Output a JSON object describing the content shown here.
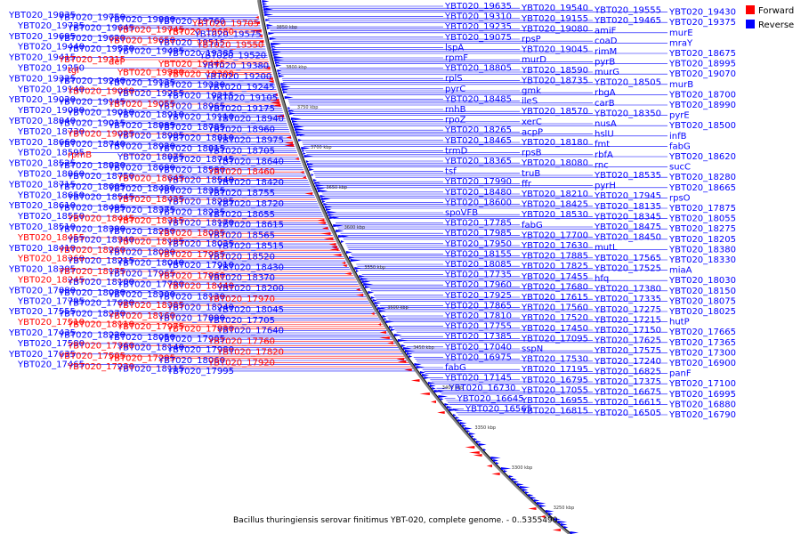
{
  "caption": "Bacillus thuringiensis serovar finitimus YBT-020, complete genome. - 0..5355490",
  "legend": [
    {
      "label": "Forward",
      "color": "#ff0000"
    },
    {
      "label": "Reverse",
      "color": "#0000ff"
    }
  ],
  "colors": {
    "forward": "#ff0000",
    "reverse": "#0000ff",
    "backbone": "#808080"
  },
  "bp_ticks": [
    "3850 kbp",
    "3800 kbp",
    "3750 kbp",
    "3700 kbp",
    "3650 kbp",
    "3600 kbp",
    "3550 kbp",
    "3500 kbp",
    "3450 kbp",
    "3400 kbp",
    "3350 kbp",
    "3300 kbp",
    "3250 kbp"
  ],
  "left_labels": [
    {
      "t": "YBT020_19835",
      "c": "b"
    },
    {
      "t": "YBT020_19750",
      "c": "b"
    },
    {
      "t": "YBT020_19800",
      "c": "b"
    },
    {
      "t": "YBT020_19760",
      "c": "b"
    },
    {
      "t": "YBT020_19705",
      "c": "r"
    },
    {
      "t": "YBT020_19725",
      "c": "b"
    },
    {
      "t": "YBT020_19645",
      "c": "b"
    },
    {
      "t": "YBT020_19745",
      "c": "r"
    },
    {
      "t": "YBT020_19680",
      "c": "r"
    },
    {
      "t": "YBT020_19575",
      "c": "b"
    },
    {
      "t": "YBT020_19695",
      "c": "b"
    },
    {
      "t": "YBT020_19620",
      "c": "b"
    },
    {
      "t": "YBT020_19650",
      "c": "r"
    },
    {
      "t": "YBT020_19515",
      "c": "b"
    },
    {
      "t": "YBT020_19550",
      "c": "r"
    },
    {
      "t": "YBT020_19440",
      "c": "b"
    },
    {
      "t": "YBT020_19570",
      "c": "b"
    },
    {
      "t": "YBT020_19495",
      "c": "b"
    },
    {
      "t": "YBT020_19385",
      "c": "b"
    },
    {
      "t": "YBT020_19520",
      "c": "b"
    },
    {
      "t": "YBT020_19415",
      "c": "b"
    },
    {
      "t": "YBT020_19315",
      "c": "r"
    },
    {
      "t": "def",
      "c": "r"
    },
    {
      "t": "YBT020_19445",
      "c": "r"
    },
    {
      "t": "YBT020_19380",
      "c": "b"
    },
    {
      "t": "YBT020_19250",
      "c": "b"
    },
    {
      "t": "tgl",
      "c": "r"
    },
    {
      "t": "YBT020_19390",
      "c": "r"
    },
    {
      "t": "YBT020_19300",
      "c": "r"
    },
    {
      "t": "YBT020_19200",
      "c": "b"
    },
    {
      "t": "YBT020_19325",
      "c": "b"
    },
    {
      "t": "YBT020_19240",
      "c": "b"
    },
    {
      "t": "YBT020_19135",
      "c": "b"
    },
    {
      "t": "YBT020_19320",
      "c": "b"
    },
    {
      "t": "YBT020_19245",
      "c": "b"
    },
    {
      "t": "YBT020_19140",
      "c": "b"
    },
    {
      "t": "YBT020_19060",
      "c": "r"
    },
    {
      "t": "YBT020_19255",
      "c": "b"
    },
    {
      "t": "YBT020_19215",
      "c": "b"
    },
    {
      "t": "YBT020_19105",
      "c": "b"
    },
    {
      "t": "YBT020_19020",
      "c": "b"
    },
    {
      "t": "YBT020_19145",
      "c": "b"
    },
    {
      "t": "YBT020_19055",
      "c": "r"
    },
    {
      "t": "YBT020_18965",
      "c": "b"
    },
    {
      "t": "YBT020_19175",
      "c": "b"
    },
    {
      "t": "YBT020_19090",
      "c": "b"
    },
    {
      "t": "YBT020_19010",
      "c": "b"
    },
    {
      "t": "YBT020_18910",
      "c": "b"
    },
    {
      "t": "YBT020_19110",
      "c": "b"
    },
    {
      "t": "YBT020_18940",
      "c": "b"
    },
    {
      "t": "YBT020_18840",
      "c": "b"
    },
    {
      "t": "YBT020_19015",
      "c": "b"
    },
    {
      "t": "YBT020_18885",
      "c": "b"
    },
    {
      "t": "YBT020_18785",
      "c": "b"
    },
    {
      "t": "YBT020_18960",
      "c": "b"
    },
    {
      "t": "YBT020_18730",
      "c": "b"
    },
    {
      "t": "YBT020_19025",
      "c": "r"
    },
    {
      "t": "YBT020_18905",
      "c": "b"
    },
    {
      "t": "YBT020_18810",
      "c": "b"
    },
    {
      "t": "YBT020_18975",
      "c": "b"
    },
    {
      "t": "YBT020_18660",
      "c": "b"
    },
    {
      "t": "YBT020_18740",
      "c": "b"
    },
    {
      "t": "YBT020_18920",
      "c": "b"
    },
    {
      "t": "YBT020_18815",
      "c": "b"
    },
    {
      "t": "YBT020_18705",
      "c": "b"
    },
    {
      "t": "YBT020_18595",
      "c": "b"
    },
    {
      "t": "rpmB",
      "c": "r"
    },
    {
      "t": "YBT020_18875",
      "c": "b"
    },
    {
      "t": "YBT020_18745",
      "c": "b"
    },
    {
      "t": "YBT020_18640",
      "c": "b"
    },
    {
      "t": "YBT020_18525",
      "c": "b"
    },
    {
      "t": "YBT020_18820",
      "c": "b"
    },
    {
      "t": "YBT020_18690",
      "c": "b"
    },
    {
      "t": "YBT020_18580",
      "c": "b"
    },
    {
      "t": "YBT020_18460",
      "c": "r"
    },
    {
      "t": "YBT020_18860",
      "c": "b"
    },
    {
      "t": "YBT020_18750",
      "c": "b"
    },
    {
      "t": "YBT020_18645",
      "c": "r"
    },
    {
      "t": "YBT020_18540",
      "c": "b"
    },
    {
      "t": "YBT020_18420",
      "c": "b"
    },
    {
      "t": "YBT020_18715",
      "c": "b"
    },
    {
      "t": "YBT020_18605",
      "c": "b"
    },
    {
      "t": "YBT020_18490",
      "c": "b"
    },
    {
      "t": "YBT020_18355",
      "c": "b"
    },
    {
      "t": "YBT020_18755",
      "c": "b"
    },
    {
      "t": "YBT020_18650",
      "c": "b"
    },
    {
      "t": "YBT020_18545",
      "c": "b"
    },
    {
      "t": "YBT020_18435",
      "c": "r"
    },
    {
      "t": "YBT020_18295",
      "c": "b"
    },
    {
      "t": "YBT020_18720",
      "c": "b"
    },
    {
      "t": "YBT020_18610",
      "c": "b"
    },
    {
      "t": "YBT020_18495",
      "c": "b"
    },
    {
      "t": "YBT020_18375",
      "c": "b"
    },
    {
      "t": "YBT020_18225",
      "c": "b"
    },
    {
      "t": "YBT020_18655",
      "c": "b"
    },
    {
      "t": "YBT020_18550",
      "c": "b"
    },
    {
      "t": "YBT020_18445",
      "c": "r"
    },
    {
      "t": "YBT020_18315",
      "c": "r"
    },
    {
      "t": "YBT020_18170",
      "c": "b"
    },
    {
      "t": "YBT020_18615",
      "c": "b"
    },
    {
      "t": "YBT020_18510",
      "c": "b"
    },
    {
      "t": "YBT020_18390",
      "c": "b"
    },
    {
      "t": "YBT020_18250",
      "c": "b"
    },
    {
      "t": "YBT020_18095",
      "c": "r"
    },
    {
      "t": "YBT020_18565",
      "c": "b"
    },
    {
      "t": "YBT020_18455",
      "c": "r"
    },
    {
      "t": "YBT020_18340",
      "c": "b"
    },
    {
      "t": "YBT020_18195",
      "c": "r"
    },
    {
      "t": "YBT020_18035",
      "c": "b"
    },
    {
      "t": "YBT020_18515",
      "c": "b"
    },
    {
      "t": "YBT020_18410",
      "c": "b"
    },
    {
      "t": "YBT020_18260",
      "c": "r"
    },
    {
      "t": "YBT020_18090",
      "c": "b"
    },
    {
      "t": "YBT020_17955",
      "c": "r"
    },
    {
      "t": "YBT020_18520",
      "c": "b"
    },
    {
      "t": "YBT020_18360",
      "c": "r"
    },
    {
      "t": "YBT020_18215",
      "c": "b"
    },
    {
      "t": "YBT020_18040",
      "c": "b"
    },
    {
      "t": "YBT020_17910",
      "c": "b"
    },
    {
      "t": "YBT020_18430",
      "c": "b"
    },
    {
      "t": "YBT020_18305",
      "c": "b"
    },
    {
      "t": "YBT020_18175",
      "c": "r"
    },
    {
      "t": "YBT020_17965",
      "c": "b"
    },
    {
      "t": "YBT020_17860",
      "c": "r"
    },
    {
      "t": "YBT020_18370",
      "c": "b"
    },
    {
      "t": "YBT020_18245",
      "c": "r"
    },
    {
      "t": "YBT020_18100",
      "c": "b"
    },
    {
      "t": "YBT020_17790",
      "c": "b"
    },
    {
      "t": "YBT020_18440",
      "c": "r"
    },
    {
      "t": "YBT020_18200",
      "c": "b"
    },
    {
      "t": "YBT020_17880",
      "c": "b"
    },
    {
      "t": "YBT020_18020",
      "c": "b"
    },
    {
      "t": "YBT020_18300",
      "c": "b"
    },
    {
      "t": "YBT020_18130",
      "c": "b"
    },
    {
      "t": "YBT020_17970",
      "c": "r"
    },
    {
      "t": "YBT020_17795",
      "c": "b"
    },
    {
      "t": "YBT020_17620",
      "c": "b"
    },
    {
      "t": "YBT020_18385",
      "c": "r"
    },
    {
      "t": "YBT020_18240",
      "c": "b"
    },
    {
      "t": "YBT020_18045",
      "c": "b"
    },
    {
      "t": "YBT020_17555",
      "c": "b"
    },
    {
      "t": "YBT020_18270",
      "c": "b"
    },
    {
      "t": "YBT020_18160",
      "c": "r"
    },
    {
      "t": "YBT020_17890",
      "c": "b"
    },
    {
      "t": "YBT020_17705",
      "c": "b"
    },
    {
      "t": "YBT020_17510",
      "c": "r"
    },
    {
      "t": "YBT020_18110",
      "c": "r"
    },
    {
      "t": "YBT020_17975",
      "c": "r"
    },
    {
      "t": "YBT020_17830",
      "c": "r"
    },
    {
      "t": "YBT020_17640",
      "c": "b"
    },
    {
      "t": "YBT020_17435",
      "c": "b"
    },
    {
      "t": "YBT020_18220",
      "c": "b"
    },
    {
      "t": "YBT020_18050",
      "c": "b"
    },
    {
      "t": "YBT020_17905",
      "c": "b"
    },
    {
      "t": "YBT020_17760",
      "c": "r"
    },
    {
      "t": "YBT020_17580",
      "c": "b"
    },
    {
      "t": "YBT020_17360",
      "c": "r"
    },
    {
      "t": "YBT020_18140",
      "c": "b"
    },
    {
      "t": "YBT020_17980",
      "c": "b"
    },
    {
      "t": "YBT020_17820",
      "c": "r"
    },
    {
      "t": "YBT020_17635",
      "c": "b"
    },
    {
      "t": "YBT020_17505",
      "c": "r"
    },
    {
      "t": "YBT020_17295",
      "c": "r"
    },
    {
      "t": "YBT020_18060",
      "c": "b"
    },
    {
      "t": "YBT020_17920",
      "c": "r"
    },
    {
      "t": "YBT020_17465",
      "c": "b"
    },
    {
      "t": "YBT020_17230",
      "c": "r"
    },
    {
      "t": "YBT020_18115",
      "c": "b"
    },
    {
      "t": "YBT020_17995",
      "c": "b"
    }
  ],
  "right_labels": [
    {
      "t": "YBT020_19635",
      "c": "b"
    },
    {
      "t": "YBT020_19540",
      "c": "b"
    },
    {
      "t": "YBT020_19555",
      "c": "b"
    },
    {
      "t": "YBT020_19430",
      "c": "b"
    },
    {
      "t": "YBT020_19310",
      "c": "b"
    },
    {
      "t": "YBT020_19155",
      "c": "b"
    },
    {
      "t": "YBT020_19465",
      "c": "b"
    },
    {
      "t": "YBT020_19375",
      "c": "b"
    },
    {
      "t": "YBT020_19235",
      "c": "b"
    },
    {
      "t": "YBT020_19080",
      "c": "b"
    },
    {
      "t": "amiF",
      "c": "b"
    },
    {
      "t": "murE",
      "c": "b"
    },
    {
      "t": "YBT020_19075",
      "c": "b"
    },
    {
      "t": "rpsP",
      "c": "b"
    },
    {
      "t": "coaD",
      "c": "b"
    },
    {
      "t": "mraY",
      "c": "b"
    },
    {
      "t": "lspA",
      "c": "b"
    },
    {
      "t": "YBT020_19045",
      "c": "b"
    },
    {
      "t": "rimM",
      "c": "b"
    },
    {
      "t": "YBT020_18675",
      "c": "b"
    },
    {
      "t": "rpmF",
      "c": "b"
    },
    {
      "t": "murD",
      "c": "b"
    },
    {
      "t": "pyrB",
      "c": "b"
    },
    {
      "t": "YBT020_18995",
      "c": "b"
    },
    {
      "t": "YBT020_18805",
      "c": "b"
    },
    {
      "t": "YBT020_18590",
      "c": "b"
    },
    {
      "t": "murG",
      "c": "b"
    },
    {
      "t": "YBT020_19070",
      "c": "b"
    },
    {
      "t": "rplS",
      "c": "b"
    },
    {
      "t": "YBT020_18735",
      "c": "b"
    },
    {
      "t": "YBT020_18505",
      "c": "b"
    },
    {
      "t": "murB",
      "c": "b"
    },
    {
      "t": "pyrC",
      "c": "b"
    },
    {
      "t": "gmk",
      "c": "b"
    },
    {
      "t": "rbgA",
      "c": "b"
    },
    {
      "t": "YBT020_18700",
      "c": "b"
    },
    {
      "t": "YBT020_18485",
      "c": "b"
    },
    {
      "t": "ileS",
      "c": "b"
    },
    {
      "t": "carB",
      "c": "b"
    },
    {
      "t": "YBT020_18990",
      "c": "b"
    },
    {
      "t": "rnhB",
      "c": "b"
    },
    {
      "t": "YBT020_18570",
      "c": "b"
    },
    {
      "t": "YBT020_18350",
      "c": "b"
    },
    {
      "t": "pyrE",
      "c": "b"
    },
    {
      "t": "rpoZ",
      "c": "b"
    },
    {
      "t": "xerC",
      "c": "b"
    },
    {
      "t": "nusA",
      "c": "b"
    },
    {
      "t": "YBT020_18500",
      "c": "b"
    },
    {
      "t": "YBT020_18265",
      "c": "b"
    },
    {
      "t": "acpP",
      "c": "b"
    },
    {
      "t": "hslU",
      "c": "b"
    },
    {
      "t": "infB",
      "c": "b"
    },
    {
      "t": "YBT020_18465",
      "c": "b"
    },
    {
      "t": "YBT020_18180",
      "c": "b"
    },
    {
      "t": "fmt",
      "c": "b"
    },
    {
      "t": "fabG",
      "c": "b"
    },
    {
      "t": "trmD",
      "c": "b"
    },
    {
      "t": "rpsB",
      "c": "b"
    },
    {
      "t": "rbfA",
      "c": "b"
    },
    {
      "t": "YBT020_18620",
      "c": "b"
    },
    {
      "t": "YBT020_18365",
      "c": "b"
    },
    {
      "t": "YBT020_18080",
      "c": "b"
    },
    {
      "t": "rnc",
      "c": "b"
    },
    {
      "t": "sucC",
      "c": "b"
    },
    {
      "t": "tsf",
      "c": "b"
    },
    {
      "t": "truB",
      "c": "b"
    },
    {
      "t": "YBT020_18535",
      "c": "b"
    },
    {
      "t": "YBT020_18280",
      "c": "b"
    },
    {
      "t": "YBT020_17990",
      "c": "b"
    },
    {
      "t": "ffr",
      "c": "b"
    },
    {
      "t": "pyrH",
      "c": "b"
    },
    {
      "t": "YBT020_18665",
      "c": "b"
    },
    {
      "t": "YBT020_18480",
      "c": "b"
    },
    {
      "t": "YBT020_18210",
      "c": "b"
    },
    {
      "t": "YBT020_17945",
      "c": "b"
    },
    {
      "t": "rpsO",
      "c": "b"
    },
    {
      "t": "YBT020_18600",
      "c": "b"
    },
    {
      "t": "YBT020_18425",
      "c": "b"
    },
    {
      "t": "YBT020_18135",
      "c": "b"
    },
    {
      "t": "YBT020_17875",
      "c": "b"
    },
    {
      "t": "spoVFB",
      "c": "b"
    },
    {
      "t": "YBT020_18530",
      "c": "b"
    },
    {
      "t": "YBT020_18345",
      "c": "b"
    },
    {
      "t": "YBT020_18055",
      "c": "b"
    },
    {
      "t": "YBT020_17785",
      "c": "b"
    },
    {
      "t": "fabG",
      "c": "b"
    },
    {
      "t": "YBT020_18475",
      "c": "b"
    },
    {
      "t": "YBT020_18275",
      "c": "b"
    },
    {
      "t": "YBT020_17985",
      "c": "b"
    },
    {
      "t": "YBT020_17700",
      "c": "b"
    },
    {
      "t": "YBT020_18450",
      "c": "b"
    },
    {
      "t": "YBT020_18205",
      "c": "b"
    },
    {
      "t": "YBT020_17950",
      "c": "b"
    },
    {
      "t": "YBT020_17630",
      "c": "b"
    },
    {
      "t": "mutL",
      "c": "b"
    },
    {
      "t": "YBT020_18380",
      "c": "b"
    },
    {
      "t": "YBT020_18155",
      "c": "b"
    },
    {
      "t": "YBT020_17885",
      "c": "b"
    },
    {
      "t": "YBT020_17565",
      "c": "b"
    },
    {
      "t": "YBT020_18330",
      "c": "b"
    },
    {
      "t": "YBT020_18085",
      "c": "b"
    },
    {
      "t": "YBT020_17825",
      "c": "b"
    },
    {
      "t": "YBT020_17525",
      "c": "b"
    },
    {
      "t": "miaA",
      "c": "b"
    },
    {
      "t": "YBT020_17735",
      "c": "b"
    },
    {
      "t": "YBT020_17455",
      "c": "b"
    },
    {
      "t": "hfq",
      "c": "b"
    },
    {
      "t": "YBT020_18030",
      "c": "b"
    },
    {
      "t": "YBT020_17960",
      "c": "b"
    },
    {
      "t": "YBT020_17680",
      "c": "b"
    },
    {
      "t": "YBT020_17380",
      "c": "b"
    },
    {
      "t": "YBT020_18150",
      "c": "b"
    },
    {
      "t": "YBT020_17925",
      "c": "b"
    },
    {
      "t": "YBT020_17615",
      "c": "b"
    },
    {
      "t": "YBT020_17335",
      "c": "b"
    },
    {
      "t": "YBT020_18075",
      "c": "b"
    },
    {
      "t": "YBT020_17865",
      "c": "b"
    },
    {
      "t": "YBT020_17560",
      "c": "b"
    },
    {
      "t": "YBT020_17275",
      "c": "b"
    },
    {
      "t": "YBT020_18025",
      "c": "b"
    },
    {
      "t": "YBT020_17810",
      "c": "b"
    },
    {
      "t": "YBT020_17520",
      "c": "b"
    },
    {
      "t": "YBT020_17215",
      "c": "b"
    },
    {
      "t": "hutP",
      "c": "b"
    },
    {
      "t": "YBT020_17755",
      "c": "b"
    },
    {
      "t": "YBT020_17450",
      "c": "b"
    },
    {
      "t": "YBT020_17150",
      "c": "b"
    },
    {
      "t": "YBT020_17665",
      "c": "b"
    },
    {
      "t": "YBT020_17385",
      "c": "b"
    },
    {
      "t": "YBT020_17095",
      "c": "b"
    },
    {
      "t": "YBT020_17625",
      "c": "b"
    },
    {
      "t": "YBT020_17365",
      "c": "b"
    },
    {
      "t": "YBT020_17040",
      "c": "b"
    },
    {
      "t": "sspN",
      "c": "b"
    },
    {
      "t": "YBT020_17575",
      "c": "b"
    },
    {
      "t": "YBT020_17300",
      "c": "b"
    },
    {
      "t": "YBT020_16975",
      "c": "b"
    },
    {
      "t": "YBT020_17530",
      "c": "b"
    },
    {
      "t": "YBT020_17240",
      "c": "b"
    },
    {
      "t": "YBT020_16900",
      "c": "b"
    },
    {
      "t": "fabG",
      "c": "b"
    },
    {
      "t": "YBT020_17195",
      "c": "b"
    },
    {
      "t": "YBT020_16825",
      "c": "b"
    },
    {
      "t": "panF",
      "c": "b"
    },
    {
      "t": "YBT020_17145",
      "c": "b"
    },
    {
      "t": "YBT020_16795",
      "c": "b"
    },
    {
      "t": "YBT020_17375",
      "c": "b"
    },
    {
      "t": "YBT020_17100",
      "c": "b"
    },
    {
      "t": "YBT020_16730",
      "c": "b"
    },
    {
      "t": "YBT020_17055",
      "c": "b"
    },
    {
      "t": "YBT020_16675",
      "c": "b"
    },
    {
      "t": "YBT020_16995",
      "c": "b"
    },
    {
      "t": "YBT020_16645",
      "c": "b"
    },
    {
      "t": "YBT020_16955",
      "c": "b"
    },
    {
      "t": "YBT020_16615",
      "c": "b"
    },
    {
      "t": "YBT020_16880",
      "c": "b"
    },
    {
      "t": "YBT020_16565",
      "c": "b"
    },
    {
      "t": "YBT020_16815",
      "c": "b"
    },
    {
      "t": "YBT020_16505",
      "c": "b"
    },
    {
      "t": "YBT020_16790",
      "c": "b"
    }
  ]
}
